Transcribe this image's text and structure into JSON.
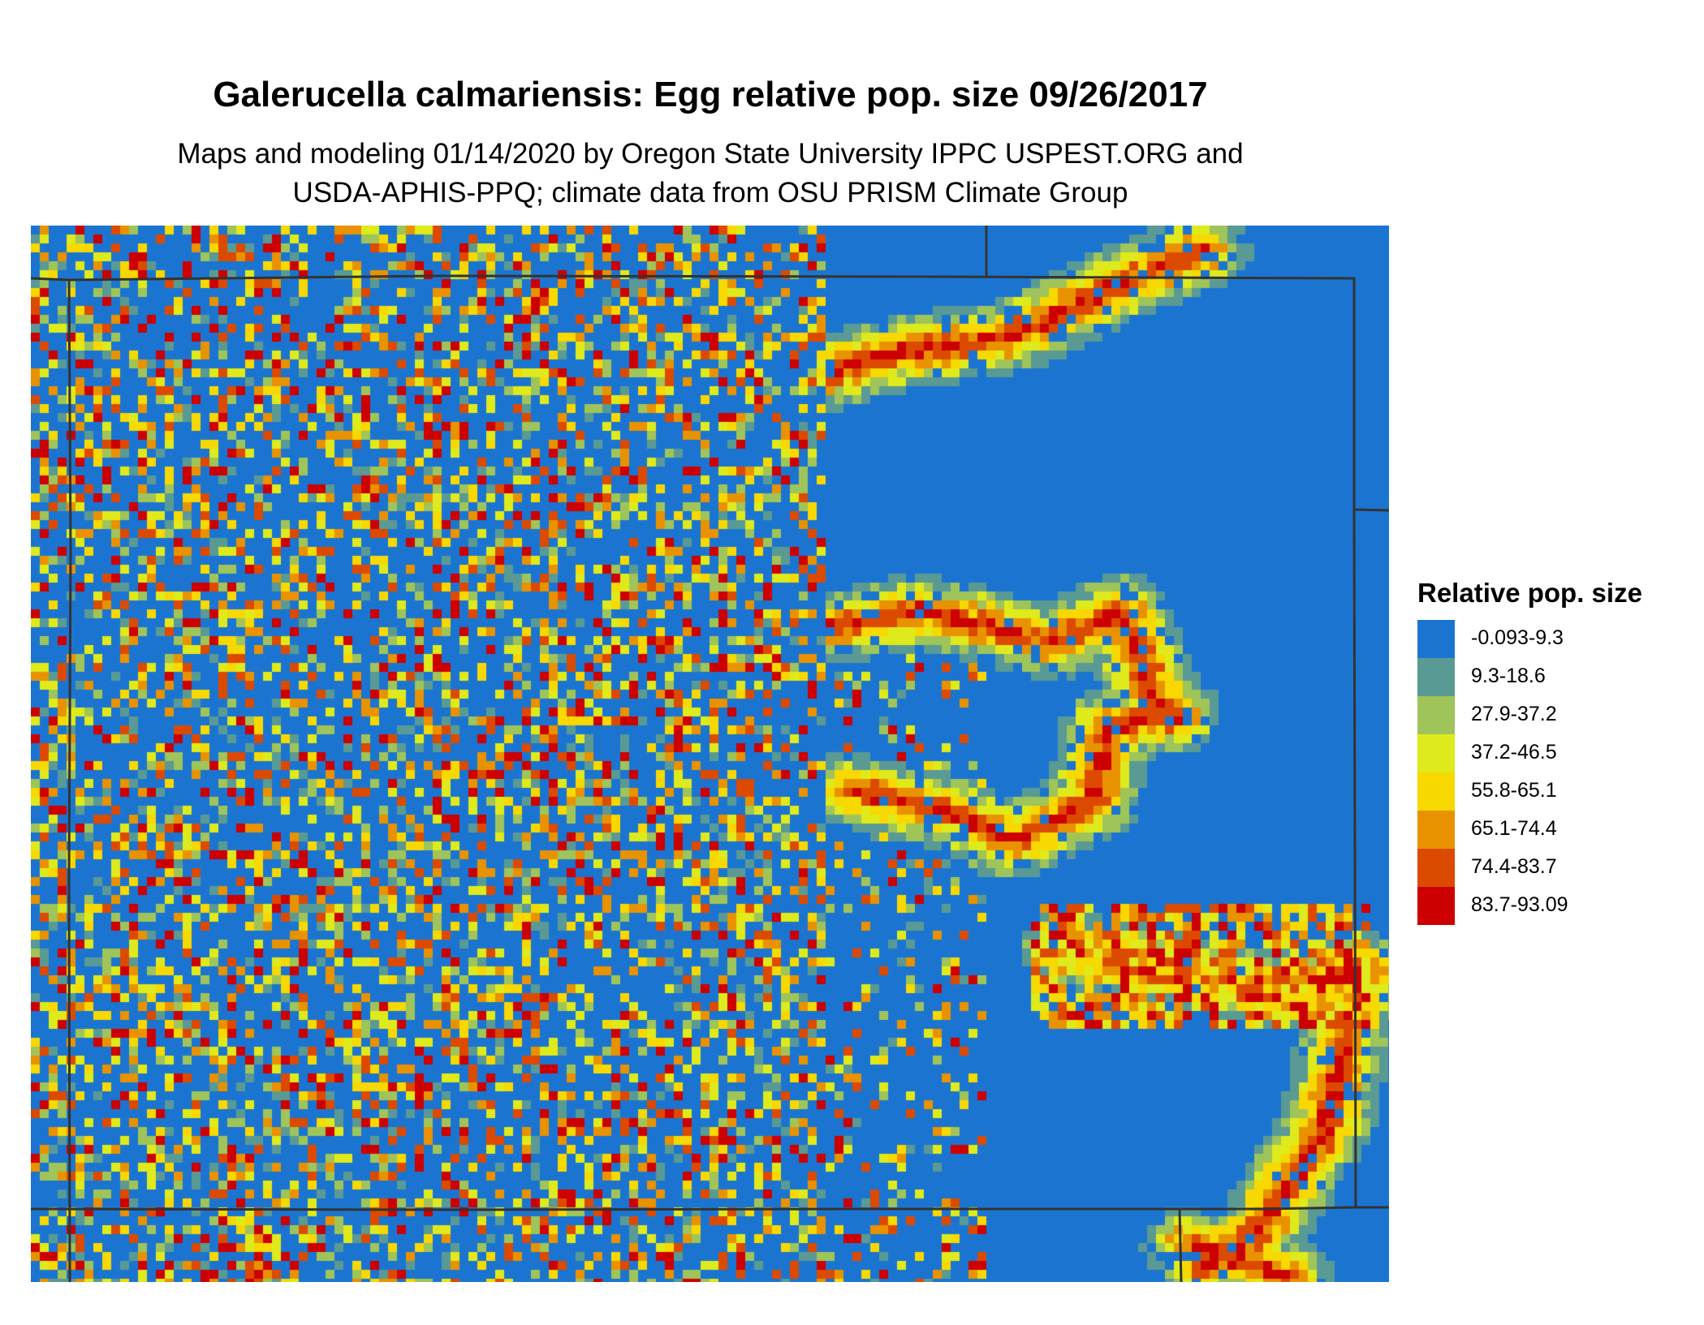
{
  "title": "Galerucella calmariensis: Egg relative pop. size 09/26/2017",
  "subtitle_line1": "Maps and modeling 01/14/2020 by Oregon State University IPPC USPEST.ORG and",
  "subtitle_line2": "USDA-APHIS-PPQ; climate data from OSU PRISM Climate Group",
  "chart_data": {
    "type": "heatmap",
    "legend": {
      "title": "Relative pop. size",
      "placement": "right",
      "bins": [
        {
          "label": "-0.093-9.3",
          "color": "#1b75d0"
        },
        {
          "label": "9.3-18.6",
          "color": "#5a9a94"
        },
        {
          "label": "27.9-37.2",
          "color": "#9fc45a"
        },
        {
          "label": "37.2-46.5",
          "color": "#dfea1c"
        },
        {
          "label": "55.8-65.1",
          "color": "#f7d800"
        },
        {
          "label": "65.1-74.4",
          "color": "#e99200"
        },
        {
          "label": "74.4-83.7",
          "color": "#dc4a00"
        },
        {
          "label": "83.7-93.09",
          "color": "#cc0000"
        }
      ]
    },
    "border_color": "#333333"
  }
}
